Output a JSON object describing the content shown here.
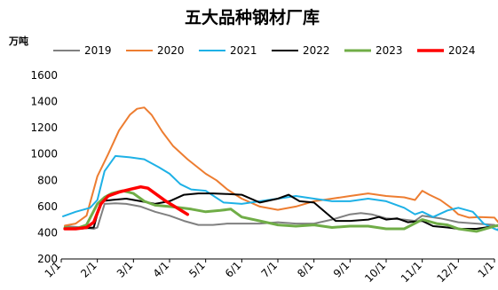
{
  "chart_data": {
    "type": "line",
    "title": "五大品种钢材厂库",
    "unit_label": "万吨",
    "xlabel": "",
    "ylabel": "万吨",
    "ylim": [
      200,
      1600
    ],
    "yticks": [
      200,
      400,
      600,
      800,
      1000,
      1200,
      1400,
      1600
    ],
    "xlim": [
      0,
      12
    ],
    "xticks": [
      {
        "x": 0,
        "label": "1/1"
      },
      {
        "x": 1,
        "label": "2/1"
      },
      {
        "x": 2,
        "label": "3/1"
      },
      {
        "x": 3,
        "label": "4/1"
      },
      {
        "x": 4,
        "label": "5/1"
      },
      {
        "x": 5,
        "label": "6/1"
      },
      {
        "x": 6,
        "label": "7/1"
      },
      {
        "x": 7,
        "label": "8/1"
      },
      {
        "x": 8,
        "label": "9/1"
      },
      {
        "x": 9,
        "label": "10/1"
      },
      {
        "x": 10,
        "label": "11/1"
      },
      {
        "x": 11,
        "label": "12/1"
      },
      {
        "x": 12,
        "label": "1/1"
      }
    ],
    "grid": false,
    "legend_position": "top",
    "series": [
      {
        "name": "2019",
        "color": "#808080",
        "width": 2,
        "points": [
          [
            0.1,
            450
          ],
          [
            0.6,
            440
          ],
          [
            0.9,
            430
          ],
          [
            1.0,
            440
          ],
          [
            1.2,
            620
          ],
          [
            1.5,
            625
          ],
          [
            1.8,
            620
          ],
          [
            2.2,
            600
          ],
          [
            2.6,
            560
          ],
          [
            3.0,
            530
          ],
          [
            3.4,
            490
          ],
          [
            3.8,
            460
          ],
          [
            4.2,
            460
          ],
          [
            4.6,
            470
          ],
          [
            5.0,
            470
          ],
          [
            5.5,
            470
          ],
          [
            6.0,
            480
          ],
          [
            6.5,
            470
          ],
          [
            7.0,
            470
          ],
          [
            7.5,
            500
          ],
          [
            8.0,
            540
          ],
          [
            8.3,
            550
          ],
          [
            8.6,
            540
          ],
          [
            9.0,
            510
          ],
          [
            9.5,
            500
          ],
          [
            9.8,
            490
          ],
          [
            10.0,
            530
          ],
          [
            10.5,
            510
          ],
          [
            11.0,
            480
          ],
          [
            11.5,
            470
          ],
          [
            12.0,
            460
          ]
        ]
      },
      {
        "name": "2020",
        "color": "#ED7D31",
        "width": 2,
        "points": [
          [
            0.1,
            455
          ],
          [
            0.4,
            470
          ],
          [
            0.7,
            530
          ],
          [
            1.0,
            830
          ],
          [
            1.3,
            1000
          ],
          [
            1.6,
            1180
          ],
          [
            1.9,
            1300
          ],
          [
            2.1,
            1345
          ],
          [
            2.3,
            1355
          ],
          [
            2.5,
            1300
          ],
          [
            2.8,
            1170
          ],
          [
            3.1,
            1060
          ],
          [
            3.5,
            960
          ],
          [
            4.0,
            850
          ],
          [
            4.3,
            800
          ],
          [
            4.6,
            730
          ],
          [
            5.0,
            660
          ],
          [
            5.5,
            600
          ],
          [
            6.0,
            575
          ],
          [
            6.5,
            600
          ],
          [
            7.0,
            640
          ],
          [
            7.5,
            660
          ],
          [
            8.0,
            680
          ],
          [
            8.5,
            700
          ],
          [
            9.0,
            680
          ],
          [
            9.5,
            670
          ],
          [
            9.8,
            650
          ],
          [
            10.0,
            720
          ],
          [
            10.2,
            690
          ],
          [
            10.5,
            650
          ],
          [
            10.8,
            590
          ],
          [
            11.0,
            540
          ],
          [
            11.3,
            515
          ],
          [
            11.6,
            520
          ],
          [
            12.0,
            515
          ],
          [
            12.2,
            450
          ]
        ]
      },
      {
        "name": "2021",
        "color": "#1EB1E6",
        "width": 2,
        "points": [
          [
            0.05,
            525
          ],
          [
            0.4,
            560
          ],
          [
            0.8,
            590
          ],
          [
            1.0,
            650
          ],
          [
            1.2,
            870
          ],
          [
            1.5,
            985
          ],
          [
            1.9,
            975
          ],
          [
            2.3,
            960
          ],
          [
            2.7,
            900
          ],
          [
            3.0,
            850
          ],
          [
            3.3,
            770
          ],
          [
            3.6,
            730
          ],
          [
            4.0,
            720
          ],
          [
            4.5,
            630
          ],
          [
            5.0,
            620
          ],
          [
            5.5,
            640
          ],
          [
            6.0,
            660
          ],
          [
            6.5,
            680
          ],
          [
            7.0,
            660
          ],
          [
            7.5,
            640
          ],
          [
            8.0,
            640
          ],
          [
            8.5,
            660
          ],
          [
            9.0,
            640
          ],
          [
            9.5,
            590
          ],
          [
            9.8,
            540
          ],
          [
            10.0,
            560
          ],
          [
            10.3,
            520
          ],
          [
            10.7,
            570
          ],
          [
            11.0,
            590
          ],
          [
            11.4,
            560
          ],
          [
            11.7,
            470
          ],
          [
            12.0,
            430
          ],
          [
            12.1,
            420
          ],
          [
            12.2,
            530
          ]
        ]
      },
      {
        "name": "2022",
        "color": "#000000",
        "width": 2,
        "points": [
          [
            0.1,
            440
          ],
          [
            0.5,
            430
          ],
          [
            0.9,
            440
          ],
          [
            1.1,
            640
          ],
          [
            1.4,
            650
          ],
          [
            1.8,
            660
          ],
          [
            2.2,
            640
          ],
          [
            2.6,
            620
          ],
          [
            3.0,
            640
          ],
          [
            3.4,
            690
          ],
          [
            3.8,
            700
          ],
          [
            4.2,
            700
          ],
          [
            4.6,
            695
          ],
          [
            5.0,
            690
          ],
          [
            5.5,
            630
          ],
          [
            6.0,
            660
          ],
          [
            6.3,
            690
          ],
          [
            6.6,
            640
          ],
          [
            7.0,
            630
          ],
          [
            7.3,
            560
          ],
          [
            7.6,
            490
          ],
          [
            8.0,
            490
          ],
          [
            8.5,
            500
          ],
          [
            8.8,
            520
          ],
          [
            9.0,
            500
          ],
          [
            9.3,
            510
          ],
          [
            9.6,
            480
          ],
          [
            10.0,
            490
          ],
          [
            10.3,
            450
          ],
          [
            10.7,
            440
          ],
          [
            11.0,
            430
          ],
          [
            11.5,
            430
          ],
          [
            12.0,
            450
          ]
        ]
      },
      {
        "name": "2023",
        "color": "#70AD47",
        "width": 3,
        "points": [
          [
            0.1,
            440
          ],
          [
            0.4,
            430
          ],
          [
            0.7,
            460
          ],
          [
            1.0,
            620
          ],
          [
            1.2,
            670
          ],
          [
            1.4,
            700
          ],
          [
            1.7,
            720
          ],
          [
            2.0,
            700
          ],
          [
            2.3,
            640
          ],
          [
            2.6,
            610
          ],
          [
            3.0,
            600
          ],
          [
            3.3,
            590
          ],
          [
            3.6,
            580
          ],
          [
            4.0,
            560
          ],
          [
            4.4,
            570
          ],
          [
            4.7,
            580
          ],
          [
            5.0,
            520
          ],
          [
            5.5,
            490
          ],
          [
            6.0,
            460
          ],
          [
            6.5,
            450
          ],
          [
            7.0,
            460
          ],
          [
            7.5,
            440
          ],
          [
            8.0,
            450
          ],
          [
            8.5,
            450
          ],
          [
            9.0,
            430
          ],
          [
            9.5,
            430
          ],
          [
            10.0,
            500
          ],
          [
            10.4,
            470
          ],
          [
            10.7,
            460
          ],
          [
            11.0,
            430
          ],
          [
            11.5,
            410
          ],
          [
            12.0,
            450
          ],
          [
            12.2,
            460
          ]
        ]
      },
      {
        "name": "2024",
        "color": "#FF0000",
        "width": 3.5,
        "points": [
          [
            0.1,
            430
          ],
          [
            0.4,
            430
          ],
          [
            0.7,
            440
          ],
          [
            0.9,
            480
          ],
          [
            1.1,
            620
          ],
          [
            1.3,
            680
          ],
          [
            1.6,
            710
          ],
          [
            1.9,
            730
          ],
          [
            2.2,
            750
          ],
          [
            2.4,
            740
          ],
          [
            2.6,
            700
          ],
          [
            2.9,
            640
          ],
          [
            3.2,
            590
          ],
          [
            3.5,
            540
          ]
        ]
      }
    ]
  }
}
